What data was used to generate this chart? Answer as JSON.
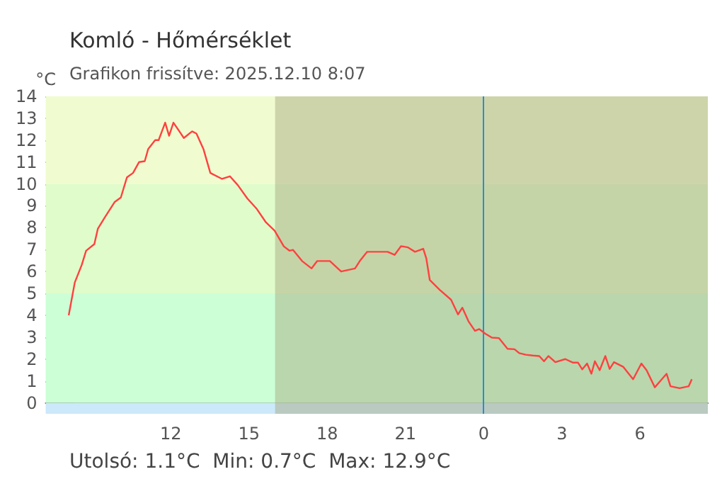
{
  "chart_data": {
    "type": "line",
    "title": "Komló - Hőmérséklet",
    "subtitle": "Grafikon frissítve: 2025.12.10 8:07",
    "ylabel": "°C",
    "annotations": [
      "Utolsó: 1.1°C  Min: 0.7°C  Max: 12.9°C"
    ],
    "series": [
      {
        "color": "#ff4040",
        "x": [
          "2025-12-09T08:05",
          "2025-12-09T08:19",
          "2025-12-09T08:35",
          "2025-12-09T08:45",
          "2025-12-09T09:04",
          "2025-12-09T09:12",
          "2025-12-09T09:28",
          "2025-12-09T09:51",
          "2025-12-09T10:05",
          "2025-12-09T10:19",
          "2025-12-09T10:33",
          "2025-12-09T10:47",
          "2025-12-09T11:00",
          "2025-12-09T11:08",
          "2025-12-09T11:24",
          "2025-12-09T11:32",
          "2025-12-09T11:47",
          "2025-12-09T11:56",
          "2025-12-09T12:06",
          "2025-12-09T12:30",
          "2025-12-09T12:49",
          "2025-12-09T12:59",
          "2025-12-09T13:15",
          "2025-12-09T13:31",
          "2025-12-09T13:58",
          "2025-12-09T14:16",
          "2025-12-09T14:34",
          "2025-12-09T14:56",
          "2025-12-09T15:17",
          "2025-12-09T15:38",
          "2025-12-09T15:59",
          "2025-12-09T16:20",
          "2025-12-09T16:33",
          "2025-12-09T16:41",
          "2025-12-09T17:02",
          "2025-12-09T17:24",
          "2025-12-09T17:37",
          "2025-12-09T18:06",
          "2025-12-09T18:32",
          "2025-12-09T19:04",
          "2025-12-09T19:15",
          "2025-12-09T19:32",
          "2025-12-09T20:19",
          "2025-12-09T20:35",
          "2025-12-09T20:50",
          "2025-12-09T21:06",
          "2025-12-09T21:22",
          "2025-12-09T21:41",
          "2025-12-09T21:48",
          "2025-12-09T21:56",
          "2025-12-09T22:19",
          "2025-12-09T22:45",
          "2025-12-09T23:01",
          "2025-12-09T23:11",
          "2025-12-09T23:25",
          "2025-12-09T23:40",
          "2025-12-09T23:50",
          "2025-12-10T00:04",
          "2025-12-10T00:19",
          "2025-12-10T00:35",
          "2025-12-10T00:55",
          "2025-12-10T01:11",
          "2025-12-10T01:22",
          "2025-12-10T01:37",
          "2025-12-10T01:53",
          "2025-12-10T02:08",
          "2025-12-10T02:19",
          "2025-12-10T02:29",
          "2025-12-10T02:45",
          "2025-12-10T03:08",
          "2025-12-10T03:25",
          "2025-12-10T03:37",
          "2025-12-10T03:47",
          "2025-12-10T03:58",
          "2025-12-10T04:08",
          "2025-12-10T04:16",
          "2025-12-10T04:27",
          "2025-12-10T04:40",
          "2025-12-10T04:50",
          "2025-12-10T05:00",
          "2025-12-10T05:21",
          "2025-12-10T05:44",
          "2025-12-10T06:03",
          "2025-12-10T06:15",
          "2025-12-10T06:34",
          "2025-12-10T06:50",
          "2025-12-10T07:01",
          "2025-12-10T07:10",
          "2025-12-10T07:31",
          "2025-12-10T07:52",
          "2025-12-10T07:59"
        ],
        "values": [
          4.0,
          5.5,
          6.3,
          6.95,
          7.25,
          7.95,
          8.47,
          9.18,
          9.38,
          10.3,
          10.5,
          11.0,
          11.04,
          11.6,
          12.0,
          12.0,
          12.8,
          12.2,
          12.8,
          12.1,
          12.4,
          12.3,
          11.6,
          10.5,
          10.23,
          10.35,
          9.95,
          9.34,
          8.88,
          8.27,
          7.86,
          7.15,
          6.95,
          6.99,
          6.48,
          6.14,
          6.48,
          6.48,
          6.0,
          6.14,
          6.48,
          6.9,
          6.9,
          6.76,
          7.16,
          7.1,
          6.9,
          7.04,
          6.6,
          5.61,
          5.16,
          4.71,
          4.04,
          4.35,
          3.73,
          3.29,
          3.37,
          3.16,
          2.98,
          2.96,
          2.47,
          2.45,
          2.27,
          2.2,
          2.16,
          2.14,
          1.9,
          2.14,
          1.86,
          2.0,
          1.84,
          1.84,
          1.53,
          1.8,
          1.33,
          1.9,
          1.49,
          2.14,
          1.55,
          1.86,
          1.65,
          1.08,
          1.8,
          1.49,
          0.71,
          1.08,
          1.33,
          0.76,
          0.67,
          0.76,
          1.08
        ]
      }
    ],
    "xlim": [
      "2025-12-09T07:12",
      "2025-12-10T08:36"
    ],
    "xticks": [
      {
        "value": "2025-12-09T08:00",
        "label": null
      },
      {
        "value": "2025-12-09T12:00",
        "label": "12"
      },
      {
        "value": "2025-12-09T15:00",
        "label": "15"
      },
      {
        "value": "2025-12-09T18:00",
        "label": "18"
      },
      {
        "value": "2025-12-09T21:00",
        "label": "21"
      },
      {
        "value": "2025-12-10T00:00",
        "label": "0"
      },
      {
        "value": "2025-12-10T03:00",
        "label": "3"
      },
      {
        "value": "2025-12-10T06:00",
        "label": "6"
      }
    ],
    "ylim": [
      -0.5,
      14
    ],
    "yticks": [
      0,
      1,
      2,
      3,
      4,
      5,
      6,
      7,
      8,
      9,
      10,
      11,
      12,
      13,
      14
    ],
    "bands": [
      {
        "axis": "y",
        "from": -0.5,
        "to": 0,
        "color": "#cce9fb"
      },
      {
        "axis": "y",
        "from": 0,
        "to": 5,
        "color": "#ccffd6"
      },
      {
        "axis": "y",
        "from": 5,
        "to": 10,
        "color": "#e0fcca"
      },
      {
        "axis": "y",
        "from": 10,
        "to": 14,
        "color": "#f0fccf"
      },
      {
        "axis": "x",
        "from": "2025-12-09T16:00",
        "to": "2025-12-10T08:36",
        "color": "#a3a37a"
      }
    ],
    "ref_lines": [
      {
        "axis": "x",
        "value": "2025-12-10T00:00",
        "color": "#1e90e0"
      }
    ],
    "grid": false,
    "marker": "none",
    "line_style": "solid"
  }
}
